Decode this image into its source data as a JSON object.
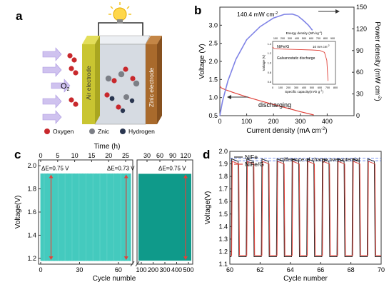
{
  "panel_letters": {
    "a": "a",
    "b": "b",
    "c": "c",
    "d": "d"
  },
  "colors": {
    "cyan": "#2ec4b6",
    "teal": "#0f9a8a",
    "blue_curve": "#7f83e6",
    "red": "#e0423a",
    "zinc": "#a96a2c",
    "air": "#c9c531",
    "electrolyte": "#d6dbe2",
    "oxygen": "#c8282c",
    "zinc_atom": "#7c7f86",
    "hydrogen": "#2a3650",
    "arrow": "#b9a7e6"
  },
  "schematic": {
    "air_label": "Air electrode",
    "zinc_label": "Zinic electrode",
    "o2_label": "O",
    "o2_sub": "2",
    "legend": [
      {
        "label": "Oxygen",
        "icon": "oxygen-icon"
      },
      {
        "label": "Znic",
        "icon": "zinc-icon"
      },
      {
        "label": "Hydrogen",
        "icon": "hydrogen-icon"
      }
    ],
    "bulb_icon": "lightbulb-icon"
  },
  "chart_data": [
    {
      "panel": "b",
      "type": "line",
      "xlabel": "Current density (mA cm",
      "xlabel_sup": "-2",
      "ylabel": "Voltage (V)",
      "y2label": "Power density (mW cm",
      "y2label_sup": "-2",
      "xlim": [
        0,
        500
      ],
      "ylim": [
        0.5,
        3.5
      ],
      "y2lim": [
        0,
        150
      ],
      "xticks": [
        "0",
        "100",
        "200",
        "300",
        "400"
      ],
      "xtick_values": [
        0,
        100,
        200,
        300,
        400
      ],
      "yticks": [
        "0.5",
        "1.0",
        "1.5",
        "2.0",
        "2.5",
        "3.0"
      ],
      "ytick_values": [
        0.5,
        1.0,
        1.5,
        2.0,
        2.5,
        3.0
      ],
      "y2ticks": [
        "0",
        "30",
        "60",
        "90",
        "120",
        "150"
      ],
      "y2tick_values": [
        0,
        30,
        60,
        90,
        120,
        150
      ],
      "annotation_peak": "140.4 mW cm",
      "annotation_peak_sup": "-2",
      "annotation_discharge": "discharging",
      "voltage_series": {
        "x": [
          0,
          5,
          20,
          50,
          100,
          150,
          200,
          250,
          300,
          350
        ],
        "y": [
          1.32,
          1.27,
          1.22,
          1.14,
          1.02,
          0.91,
          0.81,
          0.71,
          0.61,
          0.52
        ]
      },
      "power_series": {
        "x": [
          0,
          10,
          30,
          60,
          100,
          150,
          200,
          240,
          270,
          290,
          310,
          330,
          345
        ],
        "y": [
          0,
          20,
          48,
          78,
          105,
          123,
          135,
          140,
          140.4,
          138,
          132,
          125,
          118
        ]
      },
      "inset": {
        "top_label": "Energy density (Wh kg",
        "top_label_sup": "-1",
        "top_ticks": [
          "100",
          "200",
          "300",
          "400",
          "500",
          "600",
          "700",
          "800",
          "900"
        ],
        "xlabel": "Specific capacity(mAh g",
        "xlabel_sup": "-1",
        "xticks": [
          "0",
          "100",
          "200",
          "300",
          "400",
          "500",
          "600",
          "700",
          "800"
        ],
        "ylabel": "Voltage (V)",
        "yticks": [
          "0.6",
          "0.8",
          "1.0",
          "1.2",
          "1.4"
        ],
        "legend": "NiFe/G",
        "current": "10 mA cm",
        "current_sup": "-2",
        "note": "Galvanostatic discharge",
        "discharge": {
          "x": [
            0,
            20,
            100,
            300,
            500,
            600,
            660,
            690,
            705
          ],
          "y": [
            1.33,
            1.3,
            1.29,
            1.28,
            1.27,
            1.26,
            1.22,
            1.05,
            0.62
          ]
        }
      }
    },
    {
      "panel": "c",
      "type": "line",
      "top_label": "Time (h)",
      "top_ticks_left": [
        "0",
        "5",
        "10",
        "15",
        "20",
        "25"
      ],
      "top_tick_values_left": [
        0,
        5,
        10,
        15,
        20,
        25
      ],
      "top_ticks_right": [
        "30",
        "60",
        "90",
        "120"
      ],
      "top_tick_values_right": [
        30,
        60,
        90,
        120
      ],
      "xlabel": "Cycle numble",
      "xticks_left": [
        "0",
        "30",
        "60"
      ],
      "xtick_values_left": [
        0,
        30,
        60
      ],
      "xticks_right": [
        "100",
        "200",
        "300",
        "400",
        "500"
      ],
      "xtick_values_right": [
        100,
        200,
        300,
        400,
        500
      ],
      "ylabel": "Voltage(V)",
      "ylim": [
        1.15,
        2.05
      ],
      "yticks": [
        "1.2",
        "1.4",
        "1.6",
        "1.8",
        "2.0"
      ],
      "ytick_values": [
        1.2,
        1.4,
        1.6,
        1.8,
        2.0
      ],
      "charge_voltage": 1.93,
      "discharge_voltage": 1.18,
      "annotations": [
        "ΔE=0.75 V",
        "ΔE=0.73 V",
        "ΔE=0.75 V"
      ],
      "left_cycles": 70
    },
    {
      "panel": "d",
      "type": "line",
      "xlabel": "Cycle number",
      "ylabel": "Voltage(V)",
      "xlim": [
        60,
        70
      ],
      "ylim": [
        1.1,
        2.0
      ],
      "xticks": [
        "60",
        "62",
        "64",
        "66",
        "68",
        "70"
      ],
      "xtick_values": [
        60,
        62,
        64,
        66,
        68,
        70
      ],
      "yticks": [
        "1.1",
        "1.2",
        "1.3",
        "1.4",
        "1.5",
        "1.6",
        "1.7",
        "1.8",
        "1.9",
        "2.0"
      ],
      "ytick_values": [
        1.1,
        1.2,
        1.3,
        1.4,
        1.5,
        1.6,
        1.7,
        1.8,
        1.9,
        2.0
      ],
      "annotation": "Difference of charge overpotential",
      "series": [
        {
          "name": "NiFe",
          "color": "#2a2a2a",
          "high": 1.94,
          "low": 1.16
        },
        {
          "name": "NiFe/G",
          "color": "#e0423a",
          "high": 1.92,
          "low": 1.17
        }
      ],
      "dash_lines": [
        1.945,
        1.925
      ]
    }
  ]
}
